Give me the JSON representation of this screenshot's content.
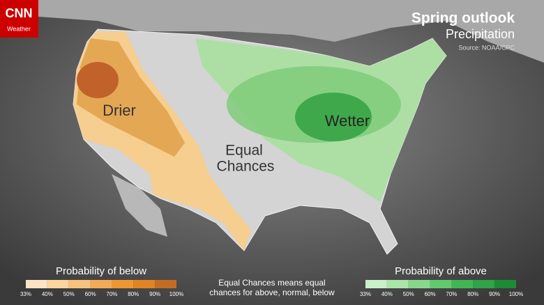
{
  "logo": {
    "brand": "CNN",
    "section": "Weather"
  },
  "header": {
    "title": "Spring outlook",
    "subtitle": "Precipitation",
    "source": "Source: NOAA/CPC"
  },
  "regions": {
    "drier": "Drier",
    "wetter": "Wetter",
    "equal": [
      "Equal",
      "Chances"
    ]
  },
  "legend_below": {
    "title": "Probability of below",
    "ticks": [
      "33%",
      "40%",
      "50%",
      "60%",
      "70%",
      "80%",
      "90%",
      "100%"
    ],
    "colors": [
      "#fde4c4",
      "#fbd49e",
      "#f7c27c",
      "#f2aa55",
      "#ee9632",
      "#e08424",
      "#c46c22"
    ]
  },
  "legend_above": {
    "title": "Probability of above",
    "ticks": [
      "33%",
      "40%",
      "50%",
      "60%",
      "70%",
      "80%",
      "90%",
      "100%"
    ],
    "colors": [
      "#c9f0c9",
      "#a9e6a9",
      "#86d98b",
      "#63c96d",
      "#41b753",
      "#2fa346",
      "#1d8a34"
    ]
  },
  "note": [
    "Equal Chances means equal",
    "chances for above, normal, below"
  ]
}
